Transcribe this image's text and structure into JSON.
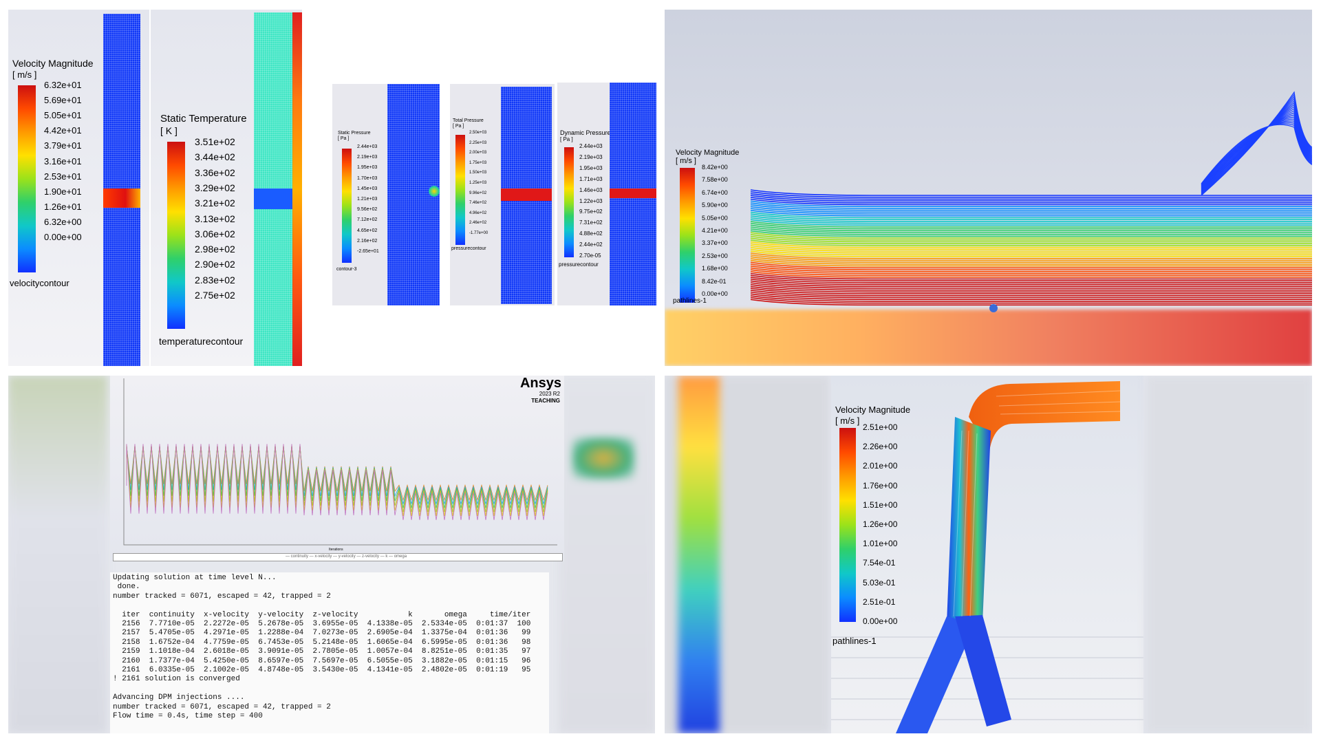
{
  "velocity_contour": {
    "title": "Velocity Magnitude",
    "unit": "[ m/s ]",
    "ticks": [
      "6.32e+01",
      "5.69e+01",
      "5.05e+01",
      "4.42e+01",
      "3.79e+01",
      "3.16e+01",
      "2.53e+01",
      "1.90e+01",
      "1.26e+01",
      "6.32e+00",
      "0.00e+00"
    ],
    "name": "velocitycontour"
  },
  "temperature_contour": {
    "title": "Static Temperature",
    "unit": "[ K ]",
    "ticks": [
      "3.51e+02",
      "3.44e+02",
      "3.36e+02",
      "3.29e+02",
      "3.21e+02",
      "3.13e+02",
      "3.06e+02",
      "2.98e+02",
      "2.90e+02",
      "2.83e+02",
      "2.75e+02"
    ],
    "name": "temperaturecontour"
  },
  "static_pressure": {
    "title": "Static Pressure",
    "unit": "[ Pa ]",
    "ticks": [
      "2.44e+03",
      "2.19e+03",
      "1.95e+03",
      "1.70e+03",
      "1.45e+03",
      "1.21e+03",
      "9.56e+02",
      "7.12e+02",
      "4.65e+02",
      "2.16e+02",
      "-2.65e+01"
    ],
    "name": "contour-3"
  },
  "total_pressure": {
    "title": "Total Pressure",
    "unit": "[ Pa ]",
    "ticks": [
      "2.50e+03",
      "2.25e+03",
      "2.00e+03",
      "1.75e+03",
      "1.50e+03",
      "1.25e+03",
      "9.96e+02",
      "7.46e+02",
      "4.96e+02",
      "2.46e+02",
      "-1.77e+00"
    ],
    "name": "pressurecontour"
  },
  "dynamic_pressure": {
    "title": "Dynamic Pressure",
    "unit": "[ Pa ]",
    "ticks": [
      "2.44e+03",
      "2.19e+03",
      "1.95e+03",
      "1.71e+03",
      "1.46e+03",
      "1.22e+03",
      "9.75e+02",
      "7.31e+02",
      "4.88e+02",
      "2.44e+02",
      "2.70e-05"
    ],
    "name": "pressurecontour"
  },
  "pathlines_top": {
    "title": "Velocity Magnitude",
    "unit": "[ m/s ]",
    "ticks": [
      "8.42e+00",
      "7.58e+00",
      "6.74e+00",
      "5.90e+00",
      "5.05e+00",
      "4.21e+00",
      "3.37e+00",
      "2.53e+00",
      "1.68e+00",
      "8.42e-01",
      "0.00e+00"
    ],
    "name": "pathlines-1"
  },
  "residuals": {
    "brand": "Ansys",
    "version": "2023 R2",
    "edition": "TEACHING",
    "legend": "— continuity — x-velocity — y-velocity — z-velocity — k — omega",
    "xlabel": "Iterations"
  },
  "console": {
    "lines": [
      "Updating solution at time level N...",
      " done.",
      "number tracked = 6071, escaped = 42, trapped = 2",
      "",
      "  iter  continuity  x-velocity  y-velocity  z-velocity           k       omega     time/iter",
      "  2156  7.7710e-05  2.2272e-05  5.2678e-05  3.6955e-05  4.1338e-05  2.5334e-05  0:01:37  100",
      "  2157  5.4705e-05  4.2971e-05  1.2288e-04  7.0273e-05  2.6905e-04  1.3375e-04  0:01:36   99",
      "  2158  1.6752e-04  4.7759e-05  6.7453e-05  5.2148e-05  1.6065e-04  6.5995e-05  0:01:36   98",
      "  2159  1.1018e-04  2.6018e-05  3.9091e-05  2.7805e-05  1.0057e-04  8.8251e-05  0:01:35   97",
      "  2160  1.7377e-04  5.4250e-05  8.6597e-05  7.5697e-05  6.5055e-05  3.1882e-05  0:01:15   96",
      "  2161  6.0335e-05  2.1002e-05  4.8748e-05  3.5430e-05  4.1341e-05  2.4802e-05  0:01:19   95",
      "! 2161 solution is converged",
      "",
      "Advancing DPM injections ....",
      "number tracked = 6071, escaped = 42, trapped = 2",
      "Flow time = 0.4s, time step = 400"
    ]
  },
  "pathlines_pipe": {
    "title": "Velocity Magnitude",
    "unit": "[ m/s ]",
    "ticks": [
      "2.51e+00",
      "2.26e+00",
      "2.01e+00",
      "1.76e+00",
      "1.51e+00",
      "1.26e+00",
      "1.01e+00",
      "7.54e-01",
      "5.03e-01",
      "2.51e-01",
      "0.00e+00"
    ],
    "name": "pathlines-1"
  }
}
